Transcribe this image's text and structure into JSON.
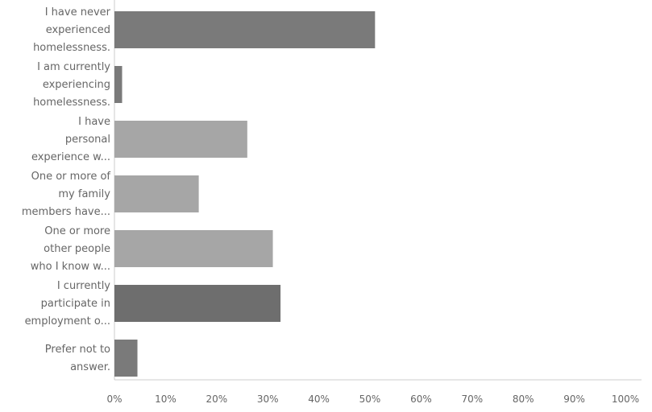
{
  "chart_data": {
    "type": "bar",
    "orientation": "horizontal",
    "title": "",
    "xlabel": "",
    "ylabel": "",
    "categories": [
      [
        "I have never",
        "experienced",
        "homelessness."
      ],
      [
        "I am currently",
        "experiencing",
        "homelessness."
      ],
      [
        "I have",
        "personal",
        "experience w..."
      ],
      [
        "One or more of",
        "my family",
        "members have..."
      ],
      [
        "One or more",
        "other people",
        "who I know w..."
      ],
      [
        "I currently",
        "participate in",
        "employment o..."
      ],
      [
        "Prefer not to",
        "answer."
      ]
    ],
    "values": [
      51,
      1.5,
      26,
      16.5,
      31,
      32.5,
      4.5
    ],
    "bar_colors": [
      "#7a7a7a",
      "#7a7a7a",
      "#a6a6a6",
      "#a6a6a6",
      "#a6a6a6",
      "#6e6e6e",
      "#7a7a7a"
    ],
    "xlim": [
      0,
      100
    ],
    "x_ticks": [
      "0%",
      "10%",
      "20%",
      "30%",
      "40%",
      "50%",
      "60%",
      "70%",
      "80%",
      "90%",
      "100%"
    ],
    "grid": false
  }
}
